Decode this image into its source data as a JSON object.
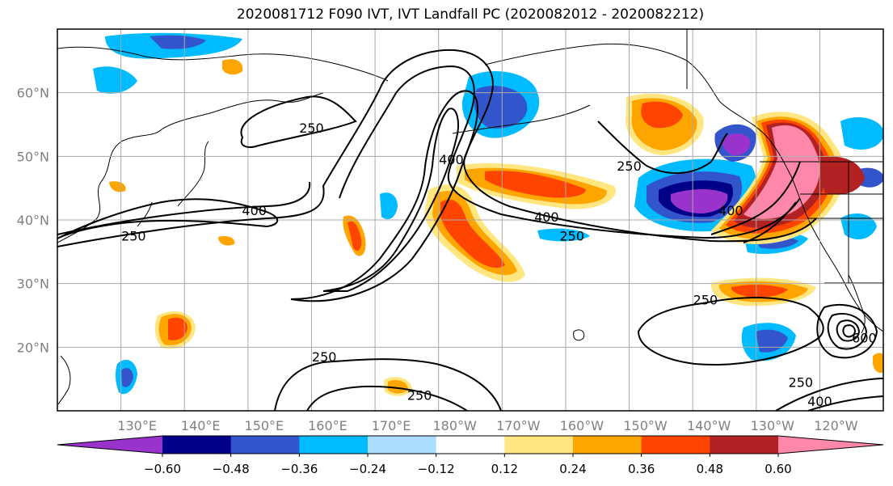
{
  "title": "2020081712 F090 IVT, IVT Landfall PC (2020082012 - 2020082212)",
  "map": {
    "lat_labels": [
      {
        "text": "60°N",
        "lat": 60
      },
      {
        "text": "50°N",
        "lat": 50
      },
      {
        "text": "40°N",
        "lat": 40
      },
      {
        "text": "30°N",
        "lat": 30
      },
      {
        "text": "20°N",
        "lat": 20
      }
    ],
    "lon_labels": [
      {
        "text": "130°E",
        "lon": 130
      },
      {
        "text": "140°E",
        "lon": 140
      },
      {
        "text": "150°E",
        "lon": 150
      },
      {
        "text": "160°E",
        "lon": 160
      },
      {
        "text": "170°E",
        "lon": 170
      },
      {
        "text": "180°W",
        "lon": 180
      },
      {
        "text": "170°W",
        "lon": 190
      },
      {
        "text": "160°W",
        "lon": 200
      },
      {
        "text": "150°W",
        "lon": 210
      },
      {
        "text": "140°W",
        "lon": 220
      },
      {
        "text": "130°W",
        "lon": 230
      },
      {
        "text": "120°W",
        "lon": 240
      }
    ],
    "lat_range": [
      10,
      70
    ],
    "lon_range": [
      120,
      250
    ],
    "contour_labels": [
      {
        "text": "250",
        "lon": 160,
        "lat": 54
      },
      {
        "text": "400",
        "lon": 182,
        "lat": 49
      },
      {
        "text": "400",
        "lon": 151,
        "lat": 41
      },
      {
        "text": "250",
        "lon": 132,
        "lat": 37
      },
      {
        "text": "400",
        "lon": 197,
        "lat": 40
      },
      {
        "text": "250",
        "lon": 201,
        "lat": 37
      },
      {
        "text": "250",
        "lon": 210,
        "lat": 48
      },
      {
        "text": "400",
        "lon": 226,
        "lat": 41
      },
      {
        "text": "250",
        "lon": 222,
        "lat": 27
      },
      {
        "text": "600",
        "lon": 247,
        "lat": 21
      },
      {
        "text": "250",
        "lon": 162,
        "lat": 18
      },
      {
        "text": "250",
        "lon": 177,
        "lat": 12
      },
      {
        "text": "250",
        "lon": 237,
        "lat": 14
      },
      {
        "text": "400",
        "lon": 240,
        "lat": 11
      }
    ]
  },
  "colorbar": {
    "colors": [
      "#9933cc",
      "#000088",
      "#3355cc",
      "#00bbff",
      "#aaddff",
      "#ffffff",
      "#ffe680",
      "#ffa500",
      "#ff4400",
      "#b22222",
      "#ff88aa"
    ],
    "ticks": [
      "−0.60",
      "−0.48",
      "−0.36",
      "−0.24",
      "−0.12",
      "0.12",
      "0.24",
      "0.36",
      "0.48",
      "0.60"
    ]
  }
}
